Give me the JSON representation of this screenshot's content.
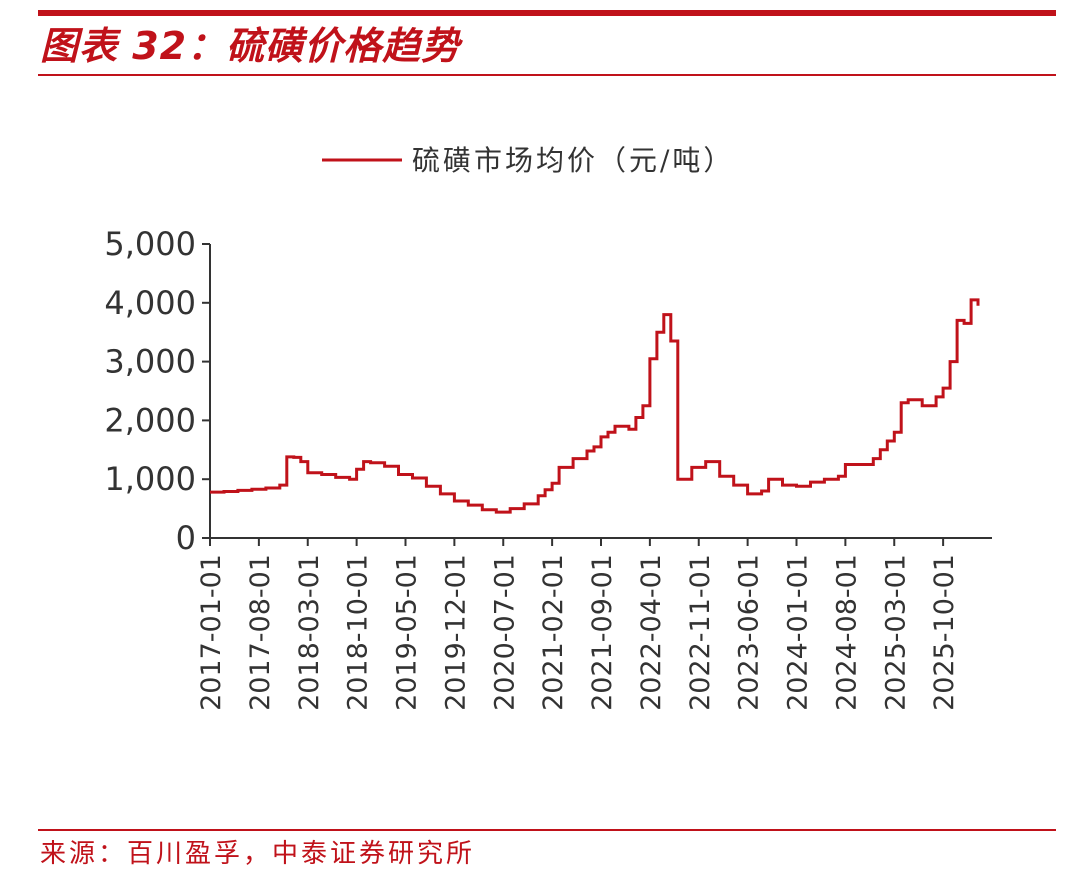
{
  "header": {
    "title": "图表 32：硫磺价格趋势"
  },
  "footer": {
    "source": "来源：百川盈孚，中泰证券研究所"
  },
  "chart_data": {
    "type": "line",
    "legend": {
      "position": "top-center"
    },
    "grid": false,
    "ylim": [
      0,
      5000
    ],
    "yticks": [
      {
        "value": 0,
        "label": "0"
      },
      {
        "value": 1000,
        "label": "1,000"
      },
      {
        "value": 2000,
        "label": "2,000"
      },
      {
        "value": 3000,
        "label": "3,000"
      },
      {
        "value": 4000,
        "label": "4,000"
      },
      {
        "value": 5000,
        "label": "5,000"
      }
    ],
    "xlim": [
      "2017-01",
      "2026-05"
    ],
    "xticks": [
      "2017-01-01",
      "2017-08-01",
      "2018-03-01",
      "2018-10-01",
      "2019-05-01",
      "2019-12-01",
      "2020-07-01",
      "2021-02-01",
      "2021-09-01",
      "2022-04-01",
      "2022-11-01",
      "2023-06-01",
      "2024-01-01",
      "2024-08-01",
      "2025-03-01",
      "2025-10-01"
    ],
    "series": [
      {
        "name": "硫磺市场均价（元/吨）",
        "color": "#c0121a",
        "x": [
          "2017-01",
          "2017-03",
          "2017-05",
          "2017-07",
          "2017-09",
          "2017-11",
          "2017-12",
          "2018-01",
          "2018-02",
          "2018-03",
          "2018-05",
          "2018-07",
          "2018-09",
          "2018-10",
          "2018-11",
          "2018-12",
          "2019-02",
          "2019-04",
          "2019-06",
          "2019-08",
          "2019-10",
          "2019-12",
          "2020-02",
          "2020-04",
          "2020-06",
          "2020-08",
          "2020-10",
          "2020-12",
          "2021-01",
          "2021-02",
          "2021-03",
          "2021-05",
          "2021-07",
          "2021-08",
          "2021-09",
          "2021-10",
          "2021-11",
          "2022-01",
          "2022-02",
          "2022-03",
          "2022-04",
          "2022-05",
          "2022-06",
          "2022-07",
          "2022-08",
          "2022-10",
          "2022-12",
          "2023-02",
          "2023-04",
          "2023-06",
          "2023-08",
          "2023-09",
          "2023-11",
          "2024-01",
          "2024-03",
          "2024-05",
          "2024-07",
          "2024-08",
          "2024-10",
          "2024-12",
          "2025-01",
          "2025-02",
          "2025-03",
          "2025-04",
          "2025-05",
          "2025-07",
          "2025-09",
          "2025-10",
          "2025-11",
          "2025-12",
          "2026-01",
          "2026-02",
          "2026-03"
        ],
        "values": [
          780,
          790,
          810,
          830,
          850,
          900,
          1380,
          1370,
          1300,
          1110,
          1080,
          1030,
          1000,
          1170,
          1300,
          1280,
          1220,
          1080,
          1020,
          880,
          750,
          630,
          560,
          480,
          440,
          500,
          580,
          720,
          820,
          930,
          1200,
          1350,
          1480,
          1550,
          1720,
          1800,
          1900,
          1850,
          2050,
          2250,
          3050,
          3500,
          3800,
          3350,
          1000,
          1200,
          1300,
          1050,
          900,
          750,
          800,
          1000,
          900,
          880,
          950,
          1000,
          1050,
          1250,
          1250,
          1350,
          1500,
          1650,
          1800,
          2300,
          2350,
          2250,
          2400,
          2550,
          3000,
          3700,
          3650,
          4050,
          3950
        ]
      }
    ]
  }
}
